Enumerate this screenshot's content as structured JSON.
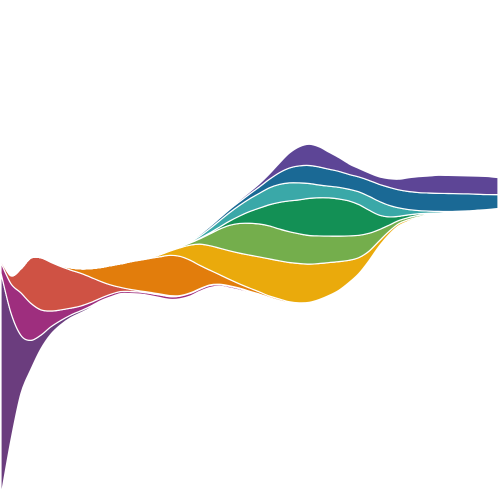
{
  "chart_data": {
    "type": "area",
    "subtype": "streamgraph",
    "baseline": "wiggle",
    "stack_order": "inside-out",
    "title": "",
    "xlabel": "",
    "ylabel": "",
    "axes_visible": false,
    "grid": false,
    "legend": "none",
    "x": [
      0,
      1,
      2,
      3,
      4,
      5,
      6,
      7,
      8,
      9,
      10,
      11,
      12,
      13,
      14,
      15,
      16,
      17,
      18,
      19,
      20,
      21,
      22,
      23,
      24,
      25,
      26,
      27,
      28,
      29,
      30,
      31,
      32,
      33,
      34,
      35,
      36,
      37,
      38,
      39,
      40,
      41,
      42,
      43,
      44,
      45,
      46,
      47,
      48,
      49,
      50
    ],
    "series": [
      {
        "color": "#6b3d7e",
        "values": [
          420,
          240,
          110,
          55,
          26,
          14,
          8,
          5,
          4,
          3,
          2,
          2,
          1,
          1,
          1,
          1,
          1,
          1,
          1,
          1,
          1,
          1,
          1,
          1,
          1,
          1,
          1,
          1,
          1,
          1,
          1,
          1,
          1,
          1,
          1,
          1,
          1,
          1,
          1,
          1,
          1,
          1,
          1,
          1,
          1,
          1,
          1,
          1,
          1,
          1,
          1
        ]
      },
      {
        "color": "#9e2e7e",
        "values": [
          20,
          55,
          80,
          70,
          48,
          30,
          20,
          13,
          9,
          7,
          5,
          5,
          4,
          4,
          4,
          4,
          5,
          5,
          5,
          5,
          4,
          4,
          3,
          3,
          3,
          2,
          2,
          2,
          2,
          2,
          2,
          2,
          2,
          1,
          1,
          1,
          1,
          1,
          1,
          1,
          1,
          1,
          1,
          1,
          1,
          1,
          1,
          1,
          1,
          1,
          1
        ]
      },
      {
        "color": "#cf5244",
        "values": [
          5,
          15,
          45,
          85,
          98,
          92,
          82,
          72,
          62,
          48,
          32,
          18,
          8,
          4,
          2,
          2,
          2,
          2,
          1,
          1,
          1,
          1,
          1,
          1,
          1,
          1,
          1,
          1,
          1,
          1,
          1,
          1,
          1,
          1,
          1,
          1,
          1,
          1,
          1,
          1,
          1,
          1,
          1,
          1,
          1,
          1,
          1,
          1,
          1,
          1,
          1
        ]
      },
      {
        "color": "#e27d0c",
        "values": [
          0,
          0,
          0,
          0,
          0,
          1,
          2,
          4,
          8,
          16,
          26,
          36,
          44,
          52,
          58,
          64,
          70,
          76,
          74,
          62,
          44,
          28,
          18,
          12,
          8,
          6,
          4,
          3,
          3,
          2,
          2,
          2,
          2,
          2,
          2,
          2,
          2,
          2,
          2,
          2,
          2,
          2,
          1,
          1,
          1,
          1,
          1,
          1,
          1,
          1,
          1
        ]
      },
      {
        "color": "#eaaa0c",
        "values": [
          0,
          0,
          0,
          0,
          0,
          0,
          0,
          0,
          0,
          0,
          0,
          0,
          0,
          0,
          1,
          2,
          4,
          8,
          16,
          28,
          40,
          46,
          50,
          54,
          58,
          62,
          66,
          70,
          72,
          74,
          74,
          72,
          68,
          62,
          54,
          42,
          30,
          18,
          10,
          6,
          4,
          3,
          2,
          2,
          2,
          2,
          1,
          1,
          1,
          1,
          1
        ]
      },
      {
        "color": "#74ae4c",
        "values": [
          0,
          0,
          0,
          0,
          0,
          0,
          0,
          0,
          0,
          0,
          0,
          0,
          0,
          0,
          0,
          0,
          0,
          1,
          2,
          4,
          10,
          22,
          36,
          48,
          56,
          60,
          62,
          62,
          60,
          58,
          56,
          54,
          52,
          50,
          48,
          46,
          42,
          34,
          22,
          12,
          6,
          4,
          3,
          2,
          2,
          1,
          1,
          1,
          1,
          1,
          1
        ]
      },
      {
        "color": "#139055",
        "values": [
          0,
          0,
          0,
          0,
          0,
          0,
          0,
          0,
          0,
          0,
          0,
          0,
          0,
          0,
          0,
          0,
          0,
          0,
          0,
          0,
          1,
          2,
          4,
          8,
          14,
          22,
          30,
          40,
          50,
          58,
          64,
          70,
          72,
          72,
          70,
          66,
          58,
          44,
          28,
          16,
          8,
          5,
          3,
          2,
          1,
          1,
          1,
          1,
          1,
          1,
          1
        ]
      },
      {
        "color": "#3aa8a8",
        "values": [
          0,
          0,
          0,
          0,
          0,
          0,
          0,
          0,
          0,
          0,
          0,
          0,
          0,
          0,
          0,
          0,
          0,
          0,
          1,
          2,
          4,
          8,
          12,
          16,
          20,
          24,
          28,
          32,
          34,
          34,
          32,
          28,
          24,
          22,
          22,
          22,
          24,
          26,
          26,
          22,
          16,
          10,
          6,
          4,
          3,
          2,
          2,
          1,
          1,
          1,
          1
        ]
      },
      {
        "color": "#1a6995",
        "values": [
          0,
          0,
          0,
          0,
          0,
          0,
          0,
          0,
          0,
          0,
          0,
          0,
          0,
          0,
          0,
          0,
          0,
          0,
          1,
          2,
          3,
          4,
          5,
          6,
          7,
          9,
          12,
          16,
          22,
          28,
          32,
          34,
          34,
          32,
          30,
          28,
          28,
          30,
          32,
          34,
          34,
          34,
          34,
          34,
          34,
          34,
          33,
          32,
          30,
          28,
          26
        ]
      },
      {
        "color": "#5d4596",
        "values": [
          0,
          0,
          0,
          0,
          0,
          0,
          0,
          0,
          0,
          0,
          0,
          0,
          0,
          0,
          0,
          0,
          0,
          0,
          0,
          0,
          1,
          1,
          2,
          2,
          3,
          4,
          6,
          10,
          18,
          28,
          36,
          40,
          38,
          32,
          26,
          20,
          16,
          14,
          14,
          16,
          20,
          26,
          30,
          32,
          34,
          34,
          34,
          34,
          34,
          34,
          32
        ]
      }
    ]
  }
}
